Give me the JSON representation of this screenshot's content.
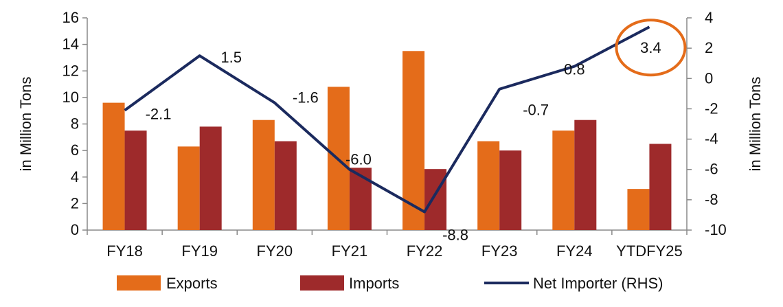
{
  "chart_data": {
    "type": "bar",
    "categories": [
      "FY18",
      "FY19",
      "FY20",
      "FY21",
      "FY22",
      "FY23",
      "FY24",
      "YTDFY25"
    ],
    "series": [
      {
        "name": "Exports",
        "kind": "bar",
        "axis": "left",
        "color": "#E46C1A",
        "values": [
          9.6,
          6.3,
          8.3,
          10.8,
          13.5,
          6.7,
          7.5,
          3.1
        ]
      },
      {
        "name": "Imports",
        "kind": "bar",
        "axis": "left",
        "color": "#9E2A2B",
        "values": [
          7.5,
          7.8,
          6.7,
          4.7,
          4.6,
          6.0,
          8.3,
          6.5
        ]
      },
      {
        "name": "Net Importer (RHS)",
        "kind": "line",
        "axis": "right",
        "color": "#1B2A5E",
        "values": [
          -2.1,
          1.5,
          -1.6,
          -6.0,
          -8.8,
          -0.7,
          0.8,
          3.4
        ],
        "labels": [
          "-2.1",
          "1.5",
          "-1.6",
          "-6.0",
          "-8.8",
          "-0.7",
          "0.8",
          "3.4"
        ]
      }
    ],
    "ylabel": "in Million Tons",
    "y2label": "in Million Tons",
    "ylim": [
      0,
      16
    ],
    "y2lim": [
      -10,
      4
    ],
    "yticks": [
      "0",
      "2",
      "4",
      "6",
      "8",
      "10",
      "12",
      "14",
      "16"
    ],
    "y2ticks": [
      "-10",
      "-8",
      "-6",
      "-4",
      "-2",
      "0",
      "2",
      "4"
    ],
    "legend_position": "bottom",
    "highlight": {
      "point_label": "3.4",
      "color": "#E46C1A"
    }
  }
}
